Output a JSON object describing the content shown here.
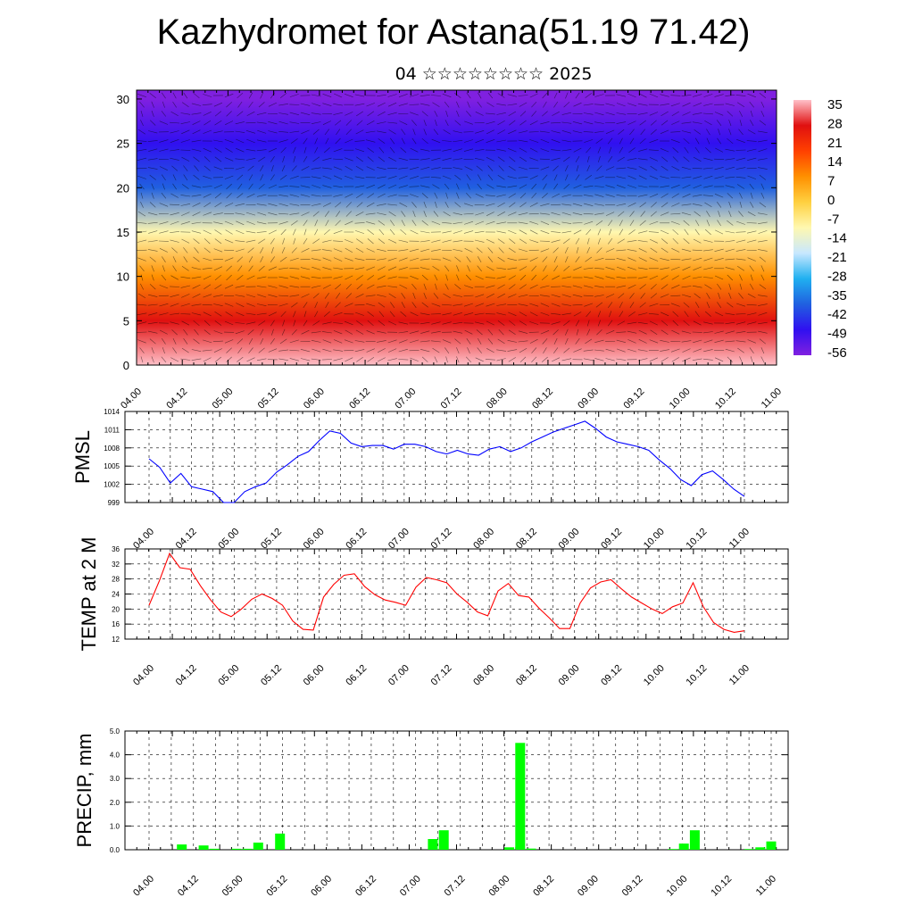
{
  "header": {
    "title": "Kazhydromet for Astana(51.19 71.42)",
    "subtitle": "04 ☆☆☆☆☆☆☆☆ 2025"
  },
  "time_labels": [
    "04.00",
    "04.12",
    "05.00",
    "05.12",
    "06.00",
    "06.12",
    "07.00",
    "07.12",
    "08.00",
    "08.12",
    "09.00",
    "09.12",
    "10.00",
    "10.12",
    "11.00"
  ],
  "chart_data": [
    {
      "type": "heatmap",
      "y_ticks": [
        0,
        5,
        10,
        15,
        20,
        25,
        30
      ],
      "ylim": [
        0,
        31
      ],
      "colorbar_labels": [
        "35",
        "28",
        "21",
        "14",
        "7",
        "0",
        "-7",
        "-14",
        "-21",
        "-28",
        "-35",
        "-42",
        "-49",
        "-56"
      ],
      "color_stops": [
        "#ffc0c8",
        "#e01010",
        "#ff4000",
        "#ff9000",
        "#ffd040",
        "#fff8b0",
        "#c8e8ff",
        "#20b0f0",
        "#2060e0",
        "#3010f0",
        "#8020e0"
      ],
      "profile": [
        {
          "level": 0,
          "value": 35
        },
        {
          "level": 5,
          "value": 24
        },
        {
          "level": 10,
          "value": 7
        },
        {
          "level": 15,
          "value": -14
        },
        {
          "level": 20,
          "value": -35
        },
        {
          "level": 25,
          "value": -49
        },
        {
          "level": 30,
          "value": -56
        }
      ]
    },
    {
      "type": "line",
      "ylabel": "PMSL",
      "y_ticks": [
        999,
        1002,
        1005,
        1008,
        1011,
        1014
      ],
      "ylim": [
        999,
        1014
      ],
      "color": "#0000ff",
      "series": [
        {
          "values": [
            1006.2,
            1004.8,
            1002.2,
            1003.8,
            1001.6,
            1001.2,
            1000.8,
            999.0,
            999.0,
            1000.8,
            1001.6,
            1002.2,
            1004.0,
            1005.2,
            1006.6,
            1007.4,
            1009.2,
            1010.8,
            1010.4,
            1008.8,
            1008.2,
            1008.4,
            1008.4,
            1007.8,
            1008.6,
            1008.6,
            1008.2,
            1007.4,
            1007.0,
            1007.6,
            1007.0,
            1006.8,
            1007.8,
            1008.2,
            1007.4,
            1008.0,
            1009.0,
            1009.8,
            1010.6,
            1011.2,
            1011.8,
            1012.4,
            1011.2,
            1009.8,
            1009.0,
            1008.6,
            1008.2,
            1007.6,
            1006.0,
            1004.6,
            1002.8,
            1001.8,
            1003.6,
            1004.2,
            1002.8,
            1001.2,
            1000.0
          ]
        }
      ]
    },
    {
      "type": "line",
      "ylabel": "TEMP at 2 M",
      "y_ticks": [
        12,
        16,
        20,
        24,
        28,
        32,
        36
      ],
      "ylim": [
        12,
        36
      ],
      "color": "#ff0000",
      "series": [
        {
          "values": [
            21.0,
            27.5,
            34.8,
            31.0,
            30.6,
            26.2,
            22.4,
            19.2,
            18.0,
            20.0,
            22.6,
            24.0,
            22.8,
            21.0,
            16.8,
            14.6,
            14.4,
            23.2,
            26.6,
            29.0,
            29.4,
            26.0,
            23.8,
            22.4,
            21.8,
            21.0,
            25.8,
            28.4,
            27.8,
            27.0,
            24.0,
            21.8,
            19.2,
            18.2,
            24.8,
            26.8,
            23.6,
            23.2,
            20.2,
            17.6,
            14.8,
            14.8,
            21.6,
            25.6,
            27.2,
            27.8,
            25.4,
            23.2,
            21.6,
            20.0,
            18.8,
            20.6,
            21.6,
            27.0,
            20.6,
            16.4,
            14.6,
            13.8,
            14.2
          ]
        }
      ]
    },
    {
      "type": "bar",
      "ylabel": "PRECIP, mm",
      "y_ticks": [
        0.0,
        1.0,
        2.0,
        3.0,
        4.0,
        5.0
      ],
      "ytick_labels": [
        "0.0",
        "1.0",
        "2.0",
        "3.0",
        "4.0",
        "5.0"
      ],
      "ylim": [
        0,
        5
      ],
      "color": "#00ff00",
      "values": [
        0,
        0,
        0,
        0.22,
        0,
        0.18,
        0.04,
        0,
        0.04,
        0.04,
        0.3,
        0,
        0.68,
        0,
        0,
        0,
        0,
        0,
        0,
        0,
        0,
        0,
        0,
        0,
        0,
        0,
        0.45,
        0.82,
        0,
        0,
        0,
        0,
        0,
        0.1,
        4.5,
        0.05,
        0,
        0,
        0,
        0,
        0,
        0,
        0,
        0,
        0,
        0,
        0,
        0,
        0.03,
        0.26,
        0.82,
        0,
        0,
        0,
        0,
        0.03,
        0.1,
        0.35
      ]
    }
  ]
}
